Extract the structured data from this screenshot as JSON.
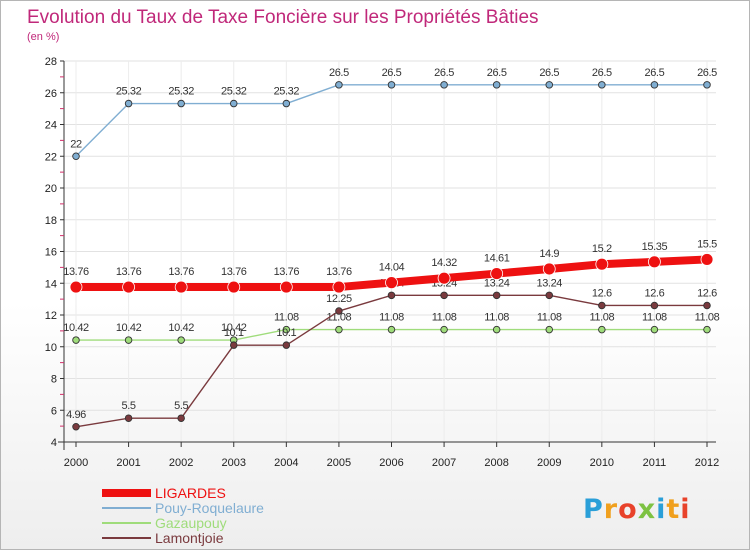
{
  "chart_data": {
    "type": "line",
    "title": "Evolution du Taux de Taxe Foncière sur les Propriétés Bâties",
    "subtitle": "(en %)",
    "x": [
      "2000",
      "2001",
      "2002",
      "2003",
      "2004",
      "2005",
      "2006",
      "2007",
      "2008",
      "2009",
      "2010",
      "2011",
      "2012"
    ],
    "ylim": [
      4,
      28
    ],
    "yticks": [
      4,
      6,
      8,
      10,
      12,
      14,
      16,
      18,
      20,
      22,
      24,
      26,
      28
    ],
    "legend_position": "bottom-left",
    "series": [
      {
        "name": "Pouy-Roquelaure",
        "color": "#80aed2",
        "values": [
          22,
          25.32,
          25.32,
          25.32,
          25.32,
          26.5,
          26.5,
          26.5,
          26.5,
          26.5,
          26.5,
          26.5,
          26.5
        ],
        "labels": [
          "22",
          "25.32",
          "25.32",
          "25.32",
          "25.32",
          "26.5",
          "26.5",
          "26.5",
          "26.5",
          "26.5",
          "26.5",
          "26.5",
          "26.5"
        ]
      },
      {
        "name": "Gazaupouy",
        "color": "#9fdc7b",
        "values": [
          10.42,
          10.42,
          10.42,
          10.42,
          11.08,
          11.08,
          11.08,
          11.08,
          11.08,
          11.08,
          11.08,
          11.08,
          11.08
        ],
        "labels": [
          "10.42",
          "10.42",
          "10.42",
          "10.42",
          "11.08",
          "11.08",
          "11.08",
          "11.08",
          "11.08",
          "11.08",
          "11.08",
          "11.08",
          "11.08"
        ]
      },
      {
        "name": "Lamontjoie",
        "color": "#7a3a3e",
        "values": [
          4.96,
          5.5,
          5.5,
          10.1,
          10.1,
          12.25,
          13.24,
          13.24,
          13.24,
          13.24,
          12.6,
          12.6,
          12.6
        ],
        "labels": [
          "4.96",
          "5.5",
          "5.5",
          "10.1",
          "10.1",
          "12.25",
          "13.24",
          "13.24",
          "13.24",
          "13.24",
          "12.6",
          "12.6",
          "12.6"
        ]
      },
      {
        "name": "LIGARDES",
        "color": "#ee1111",
        "values": [
          13.76,
          13.76,
          13.76,
          13.76,
          13.76,
          13.76,
          14.04,
          14.32,
          14.61,
          14.9,
          15.2,
          15.35,
          15.5
        ],
        "labels": [
          "13.76",
          "13.76",
          "13.76",
          "13.76",
          "13.76",
          "13.76",
          "14.04",
          "14.32",
          "14.61",
          "14.9",
          "15.2",
          "15.35",
          "15.5"
        ]
      }
    ],
    "legend": [
      "LIGARDES",
      "Pouy-Roquelaure",
      "Gazaupouy",
      "Lamontjoie"
    ]
  },
  "logo": {
    "text": "Proxiti",
    "letter_colors": [
      "#2a9fd8",
      "#f0a01e",
      "#e8422a",
      "#7dc242",
      "#2a9fd8",
      "#f0a01e",
      "#e8422a"
    ]
  }
}
